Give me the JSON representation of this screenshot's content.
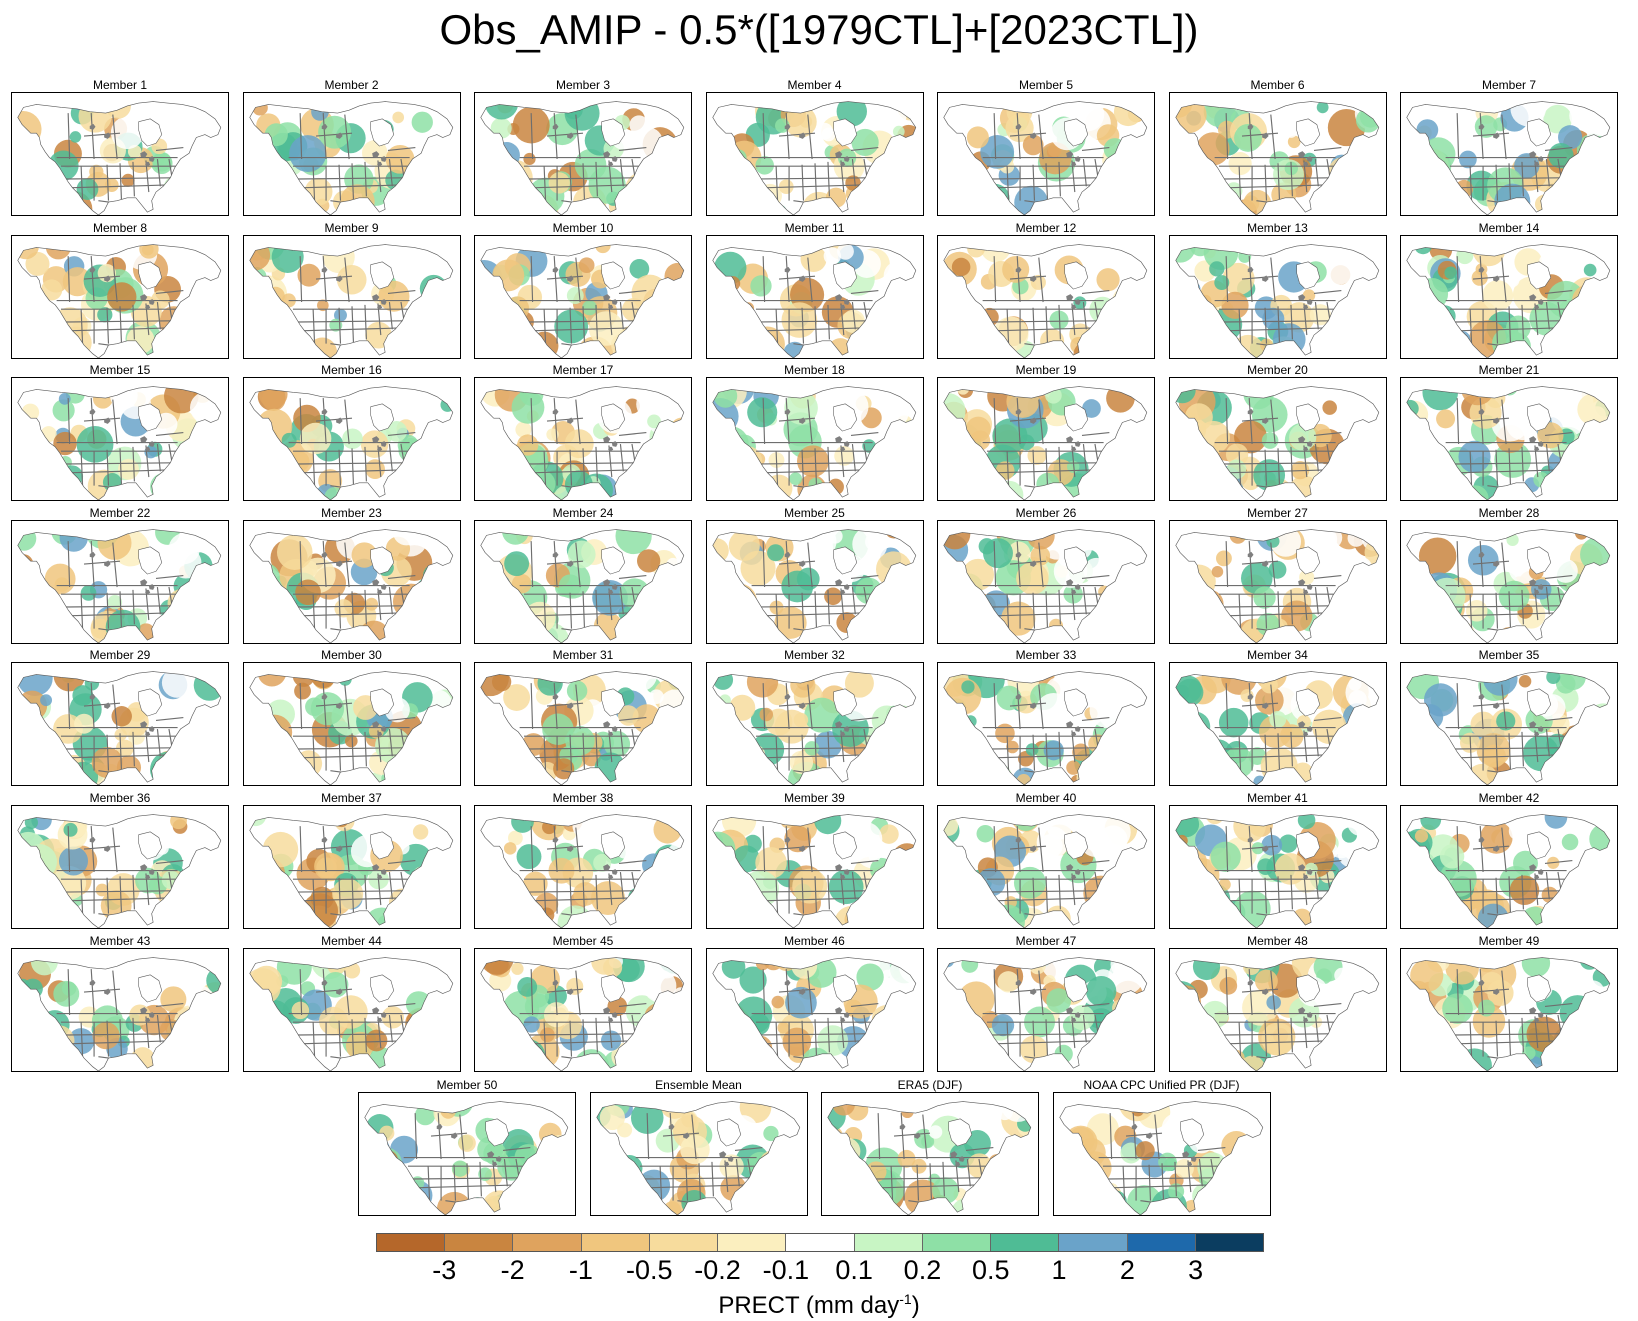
{
  "title": "Obs_AMIP - 0.5*([1979CTL]+[2023CTL])",
  "panels": [
    "Member 1",
    "Member 2",
    "Member 3",
    "Member 4",
    "Member 5",
    "Member 6",
    "Member 7",
    "Member 8",
    "Member 9",
    "Member 10",
    "Member 11",
    "Member 12",
    "Member 13",
    "Member 14",
    "Member 15",
    "Member 16",
    "Member 17",
    "Member 18",
    "Member 19",
    "Member 20",
    "Member 21",
    "Member 22",
    "Member 23",
    "Member 24",
    "Member 25",
    "Member 26",
    "Member 27",
    "Member 28",
    "Member 29",
    "Member 30",
    "Member 31",
    "Member 32",
    "Member 33",
    "Member 34",
    "Member 35",
    "Member 36",
    "Member 37",
    "Member 38",
    "Member 39",
    "Member 40",
    "Member 41",
    "Member 42",
    "Member 43",
    "Member 44",
    "Member 45",
    "Member 46",
    "Member 47",
    "Member 48",
    "Member 49",
    "Member 50",
    "Ensemble Mean",
    "ERA5 (DJF)",
    "NOAA CPC Unified PR (DJF)"
  ],
  "colorbar": {
    "label_text": "PRECT (mm day",
    "label_sup": "-1",
    "label_close": ")",
    "ticks": [
      "-3",
      "-2",
      "-1",
      "-0.5",
      "-0.2",
      "-0.1",
      "0.1",
      "0.2",
      "0.5",
      "1",
      "2",
      "3"
    ],
    "colors": [
      "#b5672a",
      "#c98540",
      "#dfa35e",
      "#f0c67e",
      "#f7dc9d",
      "#fbefbf",
      "#ffffff",
      "#c8f5c4",
      "#8ee0a6",
      "#4fbc95",
      "#6aa3c9",
      "#1e69ab",
      "#0b3d60"
    ]
  },
  "map_colors": {
    "land": "#ffffff",
    "lakes": "#7f7f7f",
    "boundaries": "#6e6e6e",
    "outline": "#5a5a5a",
    "frame": "#000000"
  }
}
